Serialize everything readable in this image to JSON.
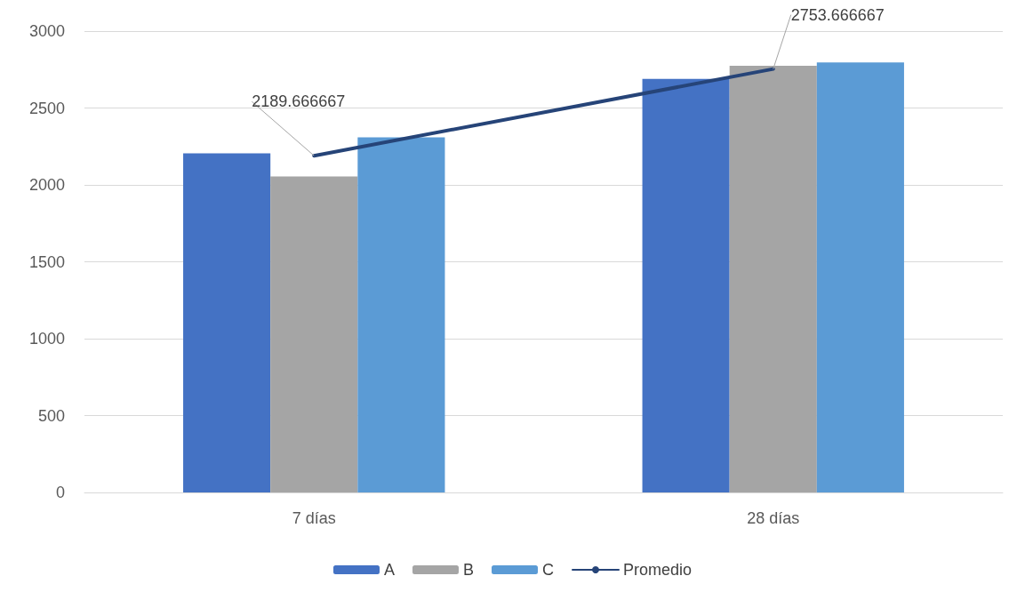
{
  "chart_data": {
    "type": "bar",
    "categories": [
      "7 días",
      "28 días"
    ],
    "series": [
      {
        "name": "A",
        "color": "#4472c4",
        "values": [
          2205,
          2690
        ]
      },
      {
        "name": "B",
        "color": "#a5a5a5",
        "values": [
          2055,
          2775
        ]
      },
      {
        "name": "C",
        "color": "#5b9bd5",
        "values": [
          2309,
          2796
        ]
      },
      {
        "name": "Promedio",
        "type": "line",
        "color": "#264478",
        "values": [
          2189.666667,
          2753.666667
        ],
        "value_labels": [
          "2189.666667",
          "2753.666667"
        ]
      }
    ],
    "ylim": [
      0,
      3000
    ],
    "yticks": [
      0,
      500,
      1000,
      1500,
      2000,
      2500,
      3000
    ],
    "grid": "y",
    "legend": "bottom",
    "marker": "none"
  }
}
